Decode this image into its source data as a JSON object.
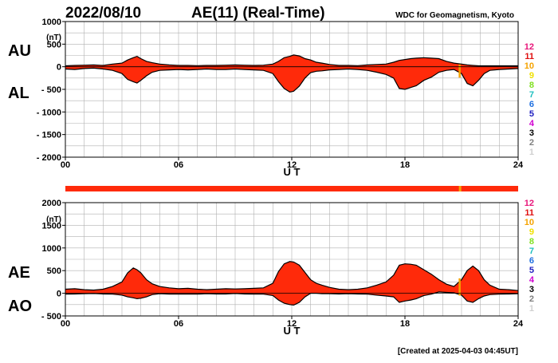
{
  "header": {
    "date": "2022/08/10",
    "title": "AE(11) (Real-Time)",
    "source": "WDC for Geomagnetism, Kyoto"
  },
  "footer": {
    "created": "[Created at 2025-04-03 04:45UT]"
  },
  "station_legend": {
    "labels": [
      "12",
      "11",
      "10",
      "9",
      "8",
      "7",
      "6",
      "5",
      "4",
      "3",
      "2",
      "1"
    ],
    "colors": [
      "#e8167a",
      "#e01010",
      "#f5a300",
      "#f0e000",
      "#80e020",
      "#20c0c0",
      "#2070e0",
      "#2020c0",
      "#d000d0",
      "#000000",
      "#808080",
      "#d0d0d0"
    ]
  },
  "colors": {
    "fill": "#ff2a0a",
    "bar": "#ff2a0a",
    "bar_marker": "#f5a300",
    "outline": "#000000",
    "grid": "#b0b0b0"
  },
  "chart_data": [
    {
      "id": "au-al",
      "type": "area",
      "unit": "(nT)",
      "xlabel": "U T",
      "x_ticks": [
        "00",
        "06",
        "12",
        "18",
        "24"
      ],
      "y_ticks": [
        "1000",
        "500",
        "0",
        "- 500",
        "- 1000",
        "- 1500",
        "- 2000"
      ],
      "xlim": [
        0,
        24
      ],
      "ylim": [
        -2000,
        1000
      ],
      "grid": true,
      "series_labels": {
        "upper": "AU",
        "lower": "AL"
      },
      "x": [
        0,
        0.5,
        1,
        1.5,
        2,
        2.5,
        3,
        3.3,
        3.6,
        3.8,
        4,
        4.3,
        4.6,
        5,
        5.5,
        6,
        6.5,
        7,
        7.5,
        8,
        8.5,
        9,
        9.5,
        10,
        10.5,
        11,
        11.3,
        11.6,
        11.9,
        12.1,
        12.4,
        12.7,
        13,
        13.3,
        13.6,
        14,
        14.5,
        15,
        15.5,
        16,
        16.5,
        17,
        17.4,
        17.7,
        18,
        18.3,
        18.6,
        19,
        19.4,
        19.8,
        20.2,
        20.6,
        21,
        21.3,
        21.6,
        21.9,
        22.2,
        22.5,
        23,
        23.5,
        24
      ],
      "au": [
        20,
        30,
        35,
        40,
        30,
        60,
        80,
        150,
        200,
        230,
        180,
        120,
        90,
        60,
        40,
        30,
        30,
        25,
        30,
        30,
        35,
        40,
        35,
        30,
        35,
        60,
        120,
        200,
        230,
        260,
        240,
        180,
        150,
        100,
        80,
        50,
        30,
        30,
        25,
        40,
        50,
        60,
        100,
        140,
        160,
        180,
        190,
        200,
        190,
        180,
        120,
        80,
        60,
        40,
        30,
        20,
        20,
        20,
        20,
        20,
        20
      ],
      "al": [
        -50,
        -60,
        -40,
        -30,
        -50,
        -80,
        -150,
        -280,
        -330,
        -360,
        -300,
        -200,
        -120,
        -80,
        -70,
        -60,
        -70,
        -60,
        -50,
        -60,
        -60,
        -50,
        -60,
        -70,
        -80,
        -150,
        -330,
        -480,
        -560,
        -540,
        -430,
        -250,
        -130,
        -100,
        -90,
        -70,
        -60,
        -50,
        -60,
        -80,
        -120,
        -170,
        -250,
        -480,
        -500,
        -460,
        -420,
        -300,
        -230,
        -120,
        -80,
        -60,
        -150,
        -370,
        -420,
        -300,
        -150,
        -80,
        -60,
        -50,
        -40
      ],
      "marker": {
        "x": 20.9,
        "upper": 50,
        "lower": -240
      }
    },
    {
      "id": "ae-ao",
      "type": "area",
      "unit": "(nT)",
      "xlabel": "U T",
      "x_ticks": [
        "00",
        "06",
        "12",
        "18",
        "24"
      ],
      "y_ticks": [
        "2000",
        "1500",
        "1000",
        "500",
        "0",
        "- 500"
      ],
      "xlim": [
        0,
        24
      ],
      "ylim": [
        -500,
        2000
      ],
      "grid": true,
      "series_labels": {
        "upper": "AE",
        "lower": "AO"
      },
      "x": [
        0,
        0.5,
        1,
        1.5,
        2,
        2.5,
        3,
        3.3,
        3.6,
        3.8,
        4,
        4.3,
        4.6,
        5,
        5.5,
        6,
        6.5,
        7,
        7.5,
        8,
        8.5,
        9,
        9.5,
        10,
        10.5,
        11,
        11.3,
        11.6,
        11.9,
        12.1,
        12.4,
        12.7,
        13,
        13.3,
        13.6,
        14,
        14.5,
        15,
        15.5,
        16,
        16.5,
        17,
        17.4,
        17.7,
        18,
        18.3,
        18.6,
        19,
        19.4,
        19.8,
        20.2,
        20.6,
        21,
        21.3,
        21.6,
        21.9,
        22.2,
        22.5,
        23,
        23.5,
        24
      ],
      "ae": [
        90,
        100,
        80,
        70,
        90,
        150,
        250,
        450,
        560,
        520,
        450,
        300,
        210,
        150,
        120,
        100,
        110,
        90,
        80,
        90,
        100,
        95,
        100,
        110,
        120,
        220,
        480,
        650,
        700,
        690,
        620,
        460,
        300,
        220,
        180,
        130,
        90,
        80,
        90,
        120,
        180,
        250,
        400,
        620,
        650,
        640,
        620,
        520,
        420,
        300,
        200,
        150,
        300,
        500,
        600,
        500,
        300,
        180,
        90,
        80,
        60
      ],
      "ao": [
        -20,
        -15,
        -10,
        -5,
        -15,
        -20,
        -40,
        -80,
        -100,
        -120,
        -110,
        -80,
        -30,
        -10,
        -20,
        -20,
        -20,
        -20,
        -10,
        -15,
        -15,
        -5,
        -15,
        -20,
        -20,
        -50,
        -150,
        -220,
        -250,
        -260,
        -200,
        -80,
        0,
        0,
        -10,
        -10,
        -15,
        -10,
        -15,
        -20,
        -40,
        -60,
        -80,
        -200,
        -170,
        -150,
        -120,
        -50,
        -20,
        30,
        20,
        10,
        -40,
        -170,
        -200,
        -120,
        -60,
        -30,
        -20,
        -15,
        -10
      ],
      "marker": {
        "x": 20.9,
        "upper": 330,
        "lower": -50
      }
    }
  ]
}
